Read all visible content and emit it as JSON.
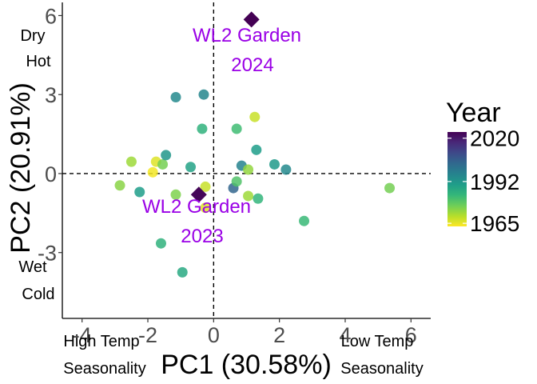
{
  "chart_data": {
    "type": "scatter",
    "xlabel": "PC1 (30.58%)",
    "ylabel": "PC2 (20.91%)",
    "xlim": [
      -4.6,
      6.6
    ],
    "ylim": [
      -5.5,
      6.5
    ],
    "x_ticks": [
      -4,
      -2,
      0,
      2,
      4,
      6
    ],
    "y_ticks": [
      -3,
      0,
      3,
      6
    ],
    "x_tick_labels": [
      "-4",
      "-2",
      "0",
      "2",
      "4",
      "6"
    ],
    "y_tick_labels": [
      "-3",
      "0",
      "3",
      "6"
    ],
    "reference_lines": {
      "x": 0,
      "y": 0,
      "style": "dashed"
    },
    "grid": false,
    "legend": {
      "title": "Year",
      "type": "colorbar",
      "position": "right",
      "tick_values": [
        2020,
        1992,
        1965
      ],
      "tick_labels": [
        "2020",
        "1992",
        "1965"
      ],
      "range": [
        1963,
        2024
      ],
      "palette": [
        "#fde725",
        "#b5de2b",
        "#6ece58",
        "#35b779",
        "#1f9e89",
        "#26828e",
        "#31688e",
        "#3e4989",
        "#482878",
        "#440154"
      ]
    },
    "axis_annotations": {
      "upper_left": [
        "Dry",
        "Hot"
      ],
      "lower_left": [
        "Wet",
        "Cold"
      ],
      "x_left": [
        "High Temp",
        "Seasonality"
      ],
      "x_right": [
        "Low Temp",
        "Seasonality"
      ]
    },
    "highlight_points": [
      {
        "x": 1.15,
        "y": 5.85,
        "year": 2024,
        "marker": "diamond",
        "label": [
          "WL2 Garden",
          "2024"
        ]
      },
      {
        "x": -0.45,
        "y": -0.8,
        "year": 2023,
        "marker": "diamond",
        "label": [
          "WL2 Garden",
          "2023"
        ]
      }
    ],
    "series": [
      {
        "marker": "circle",
        "points": [
          {
            "x": 1.25,
            "y": 2.15,
            "year": 1968
          },
          {
            "x": 0.7,
            "y": 1.7,
            "year": 1982
          },
          {
            "x": -0.35,
            "y": 1.7,
            "year": 1985
          },
          {
            "x": -1.15,
            "y": 2.9,
            "year": 1995
          },
          {
            "x": -0.3,
            "y": 3.0,
            "year": 1996
          },
          {
            "x": -2.5,
            "y": 0.45,
            "year": 1972
          },
          {
            "x": -1.75,
            "y": 0.45,
            "year": 1966
          },
          {
            "x": -1.55,
            "y": 0.35,
            "year": 1976
          },
          {
            "x": -1.45,
            "y": 0.7,
            "year": 1992
          },
          {
            "x": -0.7,
            "y": 0.25,
            "year": 1989
          },
          {
            "x": -1.85,
            "y": 0.05,
            "year": 1964
          },
          {
            "x": -2.85,
            "y": -0.45,
            "year": 1974
          },
          {
            "x": -2.25,
            "y": -0.7,
            "year": 1990
          },
          {
            "x": -1.15,
            "y": -0.8,
            "year": 1975
          },
          {
            "x": -0.25,
            "y": -0.5,
            "year": 1968
          },
          {
            "x": -0.25,
            "y": -1.3,
            "year": 1966
          },
          {
            "x": 0.6,
            "y": -0.55,
            "year": 2004
          },
          {
            "x": 0.7,
            "y": -0.3,
            "year": 1980
          },
          {
            "x": 0.85,
            "y": 0.3,
            "year": 1997
          },
          {
            "x": 1.05,
            "y": 0.15,
            "year": 1973
          },
          {
            "x": 1.3,
            "y": 0.9,
            "year": 1990
          },
          {
            "x": 1.05,
            "y": -0.85,
            "year": 1972
          },
          {
            "x": 1.35,
            "y": -0.95,
            "year": 1984
          },
          {
            "x": 1.85,
            "y": 0.35,
            "year": 1991
          },
          {
            "x": 2.2,
            "y": 0.15,
            "year": 1995
          },
          {
            "x": 2.75,
            "y": -1.8,
            "year": 1983
          },
          {
            "x": 5.35,
            "y": -0.55,
            "year": 1976
          },
          {
            "x": -1.6,
            "y": -2.65,
            "year": 1985
          },
          {
            "x": -0.95,
            "y": -3.75,
            "year": 1987
          }
        ]
      }
    ]
  }
}
